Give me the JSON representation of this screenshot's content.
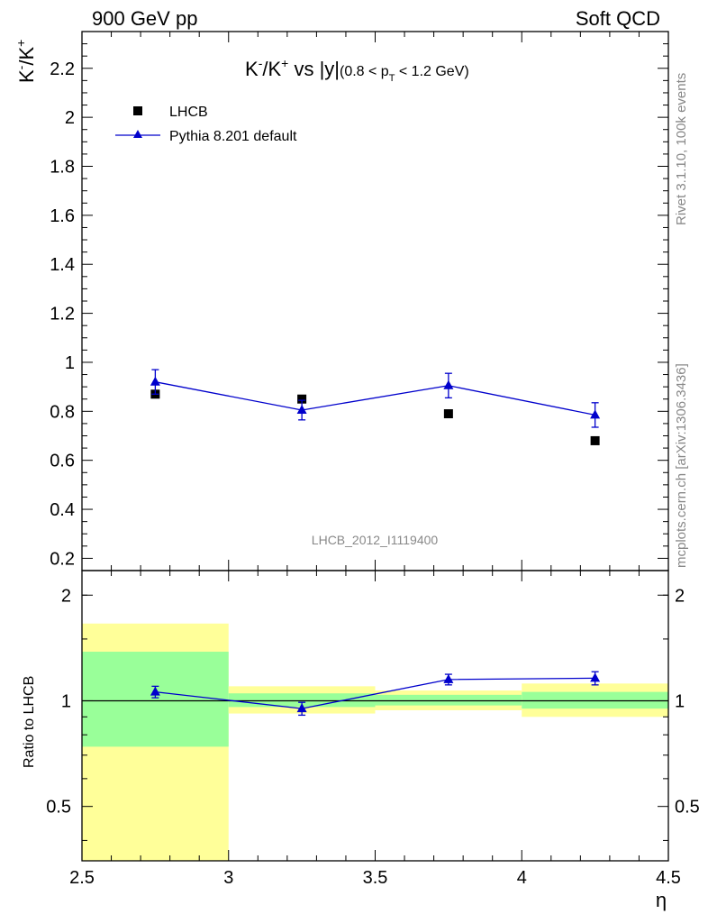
{
  "header": {
    "left": "900 GeV pp",
    "right": "Soft QCD"
  },
  "side_labels": {
    "rivet": "Rivet 3.1.10,  100k events",
    "mcplots": "mcplots.cern.ch [arXiv:1306.3436]"
  },
  "chart_data": {
    "type": "scatter",
    "title": {
      "main": "K",
      "sup1": "-",
      "mid": "/K",
      "sup2": "+",
      "rest": " vs |y|",
      "paren_a": "(0.8 < p",
      "sub": "T",
      "paren_b": " < 1.2 GeV)"
    },
    "analysis_id": "LHCB_2012_I1119400",
    "xlabel": "η",
    "ylabel": {
      "k1": "K",
      "s1": "-",
      "mid": "/K",
      "s2": "+"
    },
    "ratio_ylabel": "Ratio to LHCB",
    "xlim": [
      2.5,
      4.5
    ],
    "ylim": [
      0.15,
      2.35
    ],
    "ratio_ylim": [
      0.35,
      2.35
    ],
    "ratio_log": true,
    "x_ticks": [
      "2.5",
      "3",
      "3.5",
      "4",
      "4.5"
    ],
    "y_ticks": [
      "0.2",
      "0.4",
      "0.6",
      "0.8",
      "1",
      "1.2",
      "1.4",
      "1.6",
      "1.8",
      "2",
      "2.2"
    ],
    "ratio_ticks": [
      "0.5",
      "1",
      "2"
    ],
    "legend_position": "top-left",
    "bins": [
      [
        2.5,
        3.0
      ],
      [
        3.0,
        3.5
      ],
      [
        3.5,
        4.0
      ],
      [
        4.0,
        4.5
      ]
    ],
    "series": [
      {
        "name": "LHCB",
        "color": "#000000",
        "marker": "square",
        "x": [
          2.75,
          3.25,
          3.75,
          4.25
        ],
        "y": [
          0.87,
          0.85,
          0.79,
          0.68
        ]
      },
      {
        "name": "Pythia 8.201 default",
        "color": "#0000cc",
        "marker": "triangle",
        "x": [
          2.75,
          3.25,
          3.75,
          4.25
        ],
        "y": [
          0.92,
          0.805,
          0.905,
          0.785
        ],
        "yerr": [
          0.05,
          0.04,
          0.05,
          0.05
        ]
      }
    ],
    "ratio": {
      "x": [
        2.75,
        3.25,
        3.75,
        4.25
      ],
      "y": [
        1.06,
        0.95,
        1.15,
        1.16
      ],
      "yerr": [
        0.04,
        0.04,
        0.04,
        0.05
      ],
      "band_inner": [
        [
          0.74,
          1.38
        ],
        [
          0.96,
          1.05
        ],
        [
          0.97,
          1.04
        ],
        [
          0.95,
          1.06
        ]
      ],
      "band_outer": [
        [
          0.35,
          1.66
        ],
        [
          0.92,
          1.1
        ],
        [
          0.94,
          1.07
        ],
        [
          0.9,
          1.12
        ]
      ]
    },
    "colors": {
      "band_inner": "#99ff99",
      "band_outer": "#ffff99"
    }
  }
}
